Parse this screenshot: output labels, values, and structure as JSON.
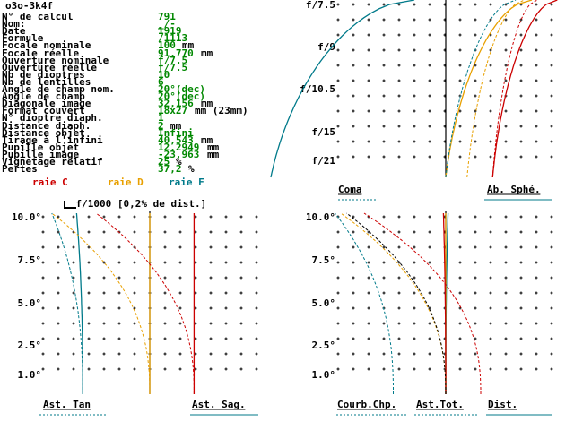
{
  "title": "o3o-3k4f",
  "params": [
    {
      "label": "N° de calcul",
      "value": "791"
    },
    {
      "label": "Nom:",
      "value": "_/-"
    },
    {
      "label": "Date",
      "value": "1919"
    },
    {
      "label": "Formule",
      "value": "/1113"
    },
    {
      "label": "Focale nominale",
      "value": "100",
      "unit": "mm"
    },
    {
      "label": "Focale réelle",
      "value": "91,770",
      "unit": "mm"
    },
    {
      "label": "Ouverture nominale",
      "value": "f/7.5"
    },
    {
      "label": "Ouverture réelle",
      "value": "f/7.5"
    },
    {
      "label": "Nb de dioptres",
      "value": "10"
    },
    {
      "label": "Nb de lentilles",
      "value": "6"
    },
    {
      "label": "Angle de champ nom.",
      "value": "20°(dec)"
    },
    {
      "label": "Angle de champ",
      "value": "20°(dec)"
    },
    {
      "label": "Diagonale image",
      "value": "32,156",
      "unit": "mm"
    },
    {
      "label": "Format couvert",
      "value": "18x27",
      "unit": "mm (23mm)"
    },
    {
      "label": "N° dioptre diaph.",
      "value": "1"
    },
    {
      "label": "Distance diaph.",
      "value": "2",
      "unit": "mm"
    },
    {
      "label": "Distance objet",
      "value": "Infini"
    },
    {
      "label": "Tirage à l'infini",
      "value": "40,543",
      "unit": "mm"
    },
    {
      "label": "Pupille objet",
      "value": "12,2949",
      "unit": "mm"
    },
    {
      "label": "Pupille image",
      "value": "-23,963",
      "unit": "mm"
    },
    {
      "label": "Vignetage relatif",
      "value": "25",
      "unit": "%"
    },
    {
      "label": "Pertes",
      "value": "37,2",
      "unit": "%"
    }
  ],
  "scale_note": "f/1000 [0,2% de dist.]",
  "legend": {
    "c": {
      "label": "raie C",
      "color": "#cc0000"
    },
    "d": {
      "label": "raie D",
      "color": "#e8a000"
    },
    "f": {
      "label": "raie F",
      "color": "#007a8a"
    }
  },
  "chart_data": [
    {
      "type": "line",
      "panel": "coma-spherical",
      "y_ticks": [
        "f/7.5",
        "f/9",
        "f/10.5",
        "f/15",
        "f/21"
      ],
      "x_labels": [
        "Coma",
        "Ab. Sphé."
      ],
      "series": [
        {
          "name": "Ab. Sphé. raie F",
          "color": "#007a8a",
          "style": "solid",
          "offset": -1.0,
          "bend": 1.0
        },
        {
          "name": "Ab. Sphé. raie D",
          "color": "#e8a000",
          "style": "solid",
          "offset": 0.0,
          "bend": 0.6
        },
        {
          "name": "Ab. Sphé. raie C",
          "color": "#cc0000",
          "style": "solid",
          "offset": 0.55,
          "bend": 0.45
        },
        {
          "name": "Coma raie F",
          "color": "#007a8a",
          "style": "dashed",
          "offset": 0.0,
          "bend": 0.55
        },
        {
          "name": "Coma raie D",
          "color": "#e8a000",
          "style": "dashed",
          "offset": 0.25,
          "bend": 0.45
        },
        {
          "name": "Coma raie C",
          "color": "#cc0000",
          "style": "dashed",
          "offset": 0.55,
          "bend": 0.35
        }
      ]
    },
    {
      "type": "line",
      "panel": "astigmatism",
      "y_ticks": [
        "10.0°",
        "7.5°",
        "5.0°",
        "2.5°",
        "1.0°"
      ],
      "x_labels": [
        "Ast. Tan",
        "Ast. Sag."
      ],
      "series": [
        {
          "name": "Ast. Sag. raie F",
          "color": "#007a8a",
          "style": "solid",
          "offset": -0.65,
          "bend": 0.06
        },
        {
          "name": "Ast. Sag. raie D",
          "color": "#e8a000",
          "style": "solid",
          "offset": 0.0,
          "bend": 0.0
        },
        {
          "name": "Ast. Sag. raie C",
          "color": "#cc0000",
          "style": "solid",
          "offset": 0.43,
          "bend": 0.0
        },
        {
          "name": "Ast. Tan raie F",
          "color": "#007a8a",
          "style": "dashed",
          "offset": -0.65,
          "bend": 0.3
        },
        {
          "name": "Ast. Tan raie D",
          "color": "#e8a000",
          "style": "dashed",
          "offset": 0.0,
          "bend": 0.95
        },
        {
          "name": "Ast. Tan raie C",
          "color": "#cc0000",
          "style": "dashed",
          "offset": 0.43,
          "bend": 0.95
        }
      ]
    },
    {
      "type": "line",
      "panel": "field-curvature-distortion",
      "y_ticks": [
        "10.0°",
        "7.5°",
        "5.0°",
        "2.5°",
        "1.0°"
      ],
      "x_labels": [
        "Courb.Chp.",
        "Ast.Tot.",
        "Dist."
      ],
      "series": [
        {
          "name": "Dist. raie F",
          "color": "#007a8a",
          "style": "solid",
          "offset": 0.0,
          "bend": -0.02
        },
        {
          "name": "Dist. raie D",
          "color": "#e8a000",
          "style": "solid",
          "offset": 0.0,
          "bend": 0.0
        },
        {
          "name": "Dist. raie C",
          "color": "#cc0000",
          "style": "solid",
          "offset": 0.0,
          "bend": 0.02
        },
        {
          "name": "Courb.Chp. raie F",
          "color": "#007a8a",
          "style": "dashed",
          "offset": -0.45,
          "bend": 0.5
        },
        {
          "name": "Courb.Chp. raie D",
          "color": "#e8a000",
          "style": "dashed",
          "offset": 0.0,
          "bend": 0.9
        },
        {
          "name": "Courb.Chp. raie C",
          "color": "#cc0000",
          "style": "dashed",
          "offset": 0.3,
          "bend": 1.0
        },
        {
          "name": "Ast.Tot.",
          "color": "#000000",
          "style": "dashed",
          "offset": 0.0,
          "bend": 0.85
        }
      ]
    }
  ]
}
